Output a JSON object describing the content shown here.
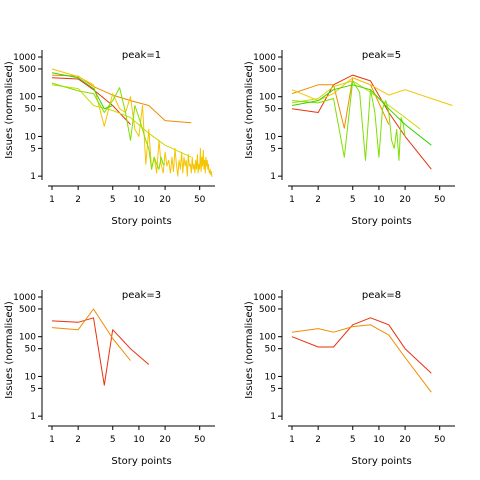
{
  "chart_data": [
    {
      "type": "line",
      "title": "peak=1",
      "xlabel": "Story points",
      "ylabel": "Issues (normalised)",
      "xscale": "log",
      "yscale": "log",
      "xlim": [
        0.9,
        75
      ],
      "ylim": [
        0.8,
        1500
      ],
      "xticks": [
        1,
        2,
        5,
        10,
        20,
        50
      ],
      "yticks": [
        1,
        5,
        10,
        50,
        100,
        500,
        1000
      ],
      "series": [
        {
          "color": "#e8320e",
          "x": [
            1,
            2,
            3,
            5,
            8
          ],
          "y": [
            300,
            280,
            150,
            60,
            20
          ]
        },
        {
          "color": "#f08c00",
          "x": [
            1,
            2,
            3,
            5,
            8,
            13,
            20,
            40
          ],
          "y": [
            350,
            330,
            180,
            110,
            80,
            60,
            25,
            22
          ]
        },
        {
          "color": "#f5c400",
          "x": [
            1,
            2,
            3,
            4,
            5,
            6,
            7,
            8,
            9,
            10,
            11,
            12,
            13,
            14,
            15,
            16,
            17,
            18,
            19,
            20,
            21,
            22,
            23,
            24,
            25,
            26,
            27,
            28,
            29,
            30,
            31,
            32,
            33,
            34,
            35,
            36,
            37,
            38,
            39,
            40,
            41,
            42,
            43,
            44,
            45,
            46,
            47,
            48,
            49,
            50,
            51,
            52,
            53,
            54,
            55,
            56,
            57,
            58,
            59,
            60,
            61,
            62,
            63,
            64,
            65,
            66,
            67,
            68,
            69,
            70
          ],
          "y": [
            500,
            320,
            200,
            18,
            120,
            50,
            40,
            100,
            15,
            10,
            60,
            2,
            15,
            1.5,
            3,
            1.2,
            8,
            2,
            1.2,
            4,
            1.8,
            2.5,
            1.2,
            3,
            1.3,
            5,
            2,
            1,
            2.5,
            1.5,
            4,
            1.2,
            3,
            1.8,
            2.5,
            1,
            3.5,
            1.8,
            2,
            1.2,
            3,
            1.5,
            2,
            1.2,
            2.5,
            1.5,
            3.5,
            1.2,
            2,
            1.5,
            5,
            1.3,
            3,
            1.8,
            4.5,
            1.5,
            2.5,
            1.2,
            3,
            1.8,
            2.5,
            1.5,
            2,
            1.3,
            1.2,
            1.5,
            1.1,
            1.3,
            1,
            1
          ]
        },
        {
          "color": "#c8dc00",
          "x": [
            1,
            2,
            3,
            5,
            8,
            13,
            20,
            40
          ],
          "y": [
            200,
            160,
            60,
            45,
            30,
            12,
            6,
            3
          ]
        },
        {
          "color": "#7ee000",
          "x": [
            1,
            2,
            3,
            4,
            5,
            6,
            7,
            8,
            9,
            10,
            11,
            12,
            13,
            14,
            15,
            16,
            17,
            18,
            19,
            20
          ],
          "y": [
            220,
            140,
            120,
            40,
            80,
            170,
            40,
            8,
            60,
            30,
            15,
            8,
            5,
            1.5,
            3,
            2,
            1.5,
            3,
            2,
            2
          ]
        },
        {
          "color": "#2ed600",
          "x": [
            1,
            2,
            3,
            4,
            5
          ],
          "y": [
            400,
            300,
            160,
            50,
            60
          ]
        }
      ]
    },
    {
      "type": "line",
      "title": "peak=5",
      "xlabel": "Story points",
      "ylabel": "Issues (normalised)",
      "xscale": "log",
      "yscale": "log",
      "xlim": [
        0.9,
        75
      ],
      "ylim": [
        0.8,
        1500
      ],
      "xticks": [
        1,
        2,
        5,
        10,
        20,
        50
      ],
      "yticks": [
        1,
        5,
        10,
        50,
        100,
        500,
        1000
      ],
      "series": [
        {
          "color": "#e8320e",
          "x": [
            1,
            2,
            3,
            5,
            8,
            13,
            20,
            40
          ],
          "y": [
            50,
            40,
            200,
            350,
            250,
            40,
            10,
            1.5
          ]
        },
        {
          "color": "#f08c00",
          "x": [
            1,
            2,
            3,
            4,
            5,
            8,
            13
          ],
          "y": [
            120,
            200,
            200,
            16,
            300,
            200,
            20
          ]
        },
        {
          "color": "#f5c400",
          "x": [
            1,
            2,
            3,
            5,
            8,
            13,
            20,
            40,
            70
          ],
          "y": [
            150,
            80,
            120,
            300,
            200,
            110,
            150,
            90,
            60
          ]
        },
        {
          "color": "#c8dc00",
          "x": [
            1,
            2,
            3,
            5,
            8,
            13,
            20,
            30
          ],
          "y": [
            70,
            90,
            180,
            250,
            130,
            60,
            30,
            15
          ]
        },
        {
          "color": "#7ee000",
          "x": [
            1,
            2,
            3,
            4,
            5,
            6,
            7,
            8,
            9,
            10,
            11,
            12,
            13,
            14,
            15,
            16,
            17,
            18,
            19,
            20
          ],
          "y": [
            80,
            70,
            90,
            3,
            250,
            130,
            2.5,
            150,
            40,
            3,
            50,
            80,
            40,
            8,
            5,
            15,
            2.5,
            30,
            20,
            10
          ]
        },
        {
          "color": "#2ed600",
          "x": [
            1,
            2,
            3,
            5,
            8,
            13,
            20,
            40
          ],
          "y": [
            60,
            80,
            150,
            200,
            150,
            50,
            20,
            6
          ]
        }
      ]
    },
    {
      "type": "line",
      "title": "peak=3",
      "xlabel": "Story points",
      "ylabel": "Issues (normalised)",
      "xscale": "log",
      "yscale": "log",
      "xlim": [
        0.9,
        75
      ],
      "ylim": [
        0.8,
        1500
      ],
      "xticks": [
        1,
        2,
        5,
        10,
        20,
        50
      ],
      "yticks": [
        1,
        5,
        10,
        50,
        100,
        500,
        1000
      ],
      "series": [
        {
          "color": "#e8320e",
          "x": [
            1,
            2,
            3,
            4,
            5,
            8,
            13
          ],
          "y": [
            250,
            230,
            300,
            6,
            150,
            50,
            20
          ]
        },
        {
          "color": "#f08c00",
          "x": [
            1,
            2,
            3,
            5,
            8
          ],
          "y": [
            170,
            150,
            500,
            90,
            25
          ]
        }
      ]
    },
    {
      "type": "line",
      "title": "peak=8",
      "xlabel": "Story points",
      "ylabel": "Issues (normalised)",
      "xscale": "log",
      "yscale": "log",
      "xlim": [
        0.9,
        75
      ],
      "ylim": [
        0.8,
        1500
      ],
      "xticks": [
        1,
        2,
        5,
        10,
        20,
        50
      ],
      "yticks": [
        1,
        5,
        10,
        50,
        100,
        500,
        1000
      ],
      "series": [
        {
          "color": "#e8320e",
          "x": [
            1,
            2,
            3,
            5,
            8,
            13,
            20,
            40
          ],
          "y": [
            100,
            55,
            55,
            200,
            300,
            200,
            50,
            12
          ]
        },
        {
          "color": "#f08c00",
          "x": [
            1,
            2,
            3,
            5,
            8,
            13,
            20,
            40
          ],
          "y": [
            130,
            160,
            130,
            180,
            200,
            110,
            30,
            4
          ]
        }
      ]
    }
  ]
}
